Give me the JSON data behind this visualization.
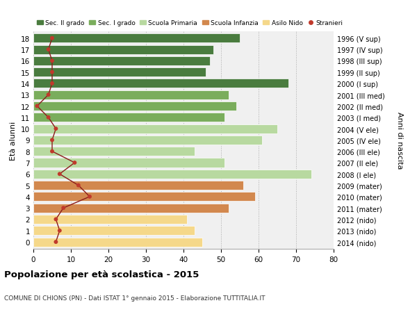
{
  "ages": [
    18,
    17,
    16,
    15,
    14,
    13,
    12,
    11,
    10,
    9,
    8,
    7,
    6,
    5,
    4,
    3,
    2,
    1,
    0
  ],
  "years": [
    "1996 (V sup)",
    "1997 (IV sup)",
    "1998 (III sup)",
    "1999 (II sup)",
    "2000 (I sup)",
    "2001 (III med)",
    "2002 (II med)",
    "2003 (I med)",
    "2004 (V ele)",
    "2005 (IV ele)",
    "2006 (III ele)",
    "2007 (II ele)",
    "2008 (I ele)",
    "2009 (mater)",
    "2010 (mater)",
    "2011 (mater)",
    "2012 (nido)",
    "2013 (nido)",
    "2014 (nido)"
  ],
  "bar_values": [
    55,
    48,
    47,
    46,
    68,
    52,
    54,
    51,
    65,
    61,
    43,
    51,
    74,
    56,
    59,
    52,
    41,
    43,
    45
  ],
  "stranieri": [
    5,
    4,
    5,
    5,
    5,
    4,
    1,
    4,
    6,
    5,
    5,
    11,
    7,
    12,
    15,
    8,
    6,
    7,
    6
  ],
  "bar_colors": [
    "#4a7c3f",
    "#4a7c3f",
    "#4a7c3f",
    "#4a7c3f",
    "#4a7c3f",
    "#7aad5c",
    "#7aad5c",
    "#7aad5c",
    "#b8d9a0",
    "#b8d9a0",
    "#b8d9a0",
    "#b8d9a0",
    "#b8d9a0",
    "#d2884e",
    "#d2884e",
    "#d2884e",
    "#f5d88a",
    "#f5d88a",
    "#f5d88a"
  ],
  "legend_labels": [
    "Sec. II grado",
    "Sec. I grado",
    "Scuola Primaria",
    "Scuola Infanzia",
    "Asilo Nido",
    "Stranieri"
  ],
  "legend_colors": [
    "#4a7c3f",
    "#7aad5c",
    "#b8d9a0",
    "#d2884e",
    "#f5d88a",
    "#c0392b"
  ],
  "ylabel_left": "Età alunni",
  "ylabel_right": "Anni di nascita",
  "title": "Popolazione per età scolastica - 2015",
  "subtitle": "COMUNE DI CHIONS (PN) - Dati ISTAT 1° gennaio 2015 - Elaborazione TUTTITALIA.IT",
  "xlim": [
    0,
    80
  ],
  "xticks": [
    0,
    10,
    20,
    30,
    40,
    50,
    60,
    70,
    80
  ],
  "stranieri_color": "#c0392b",
  "line_color": "#8b1a1a",
  "bg_color": "#ffffff",
  "plot_bg_color": "#f0f0f0"
}
